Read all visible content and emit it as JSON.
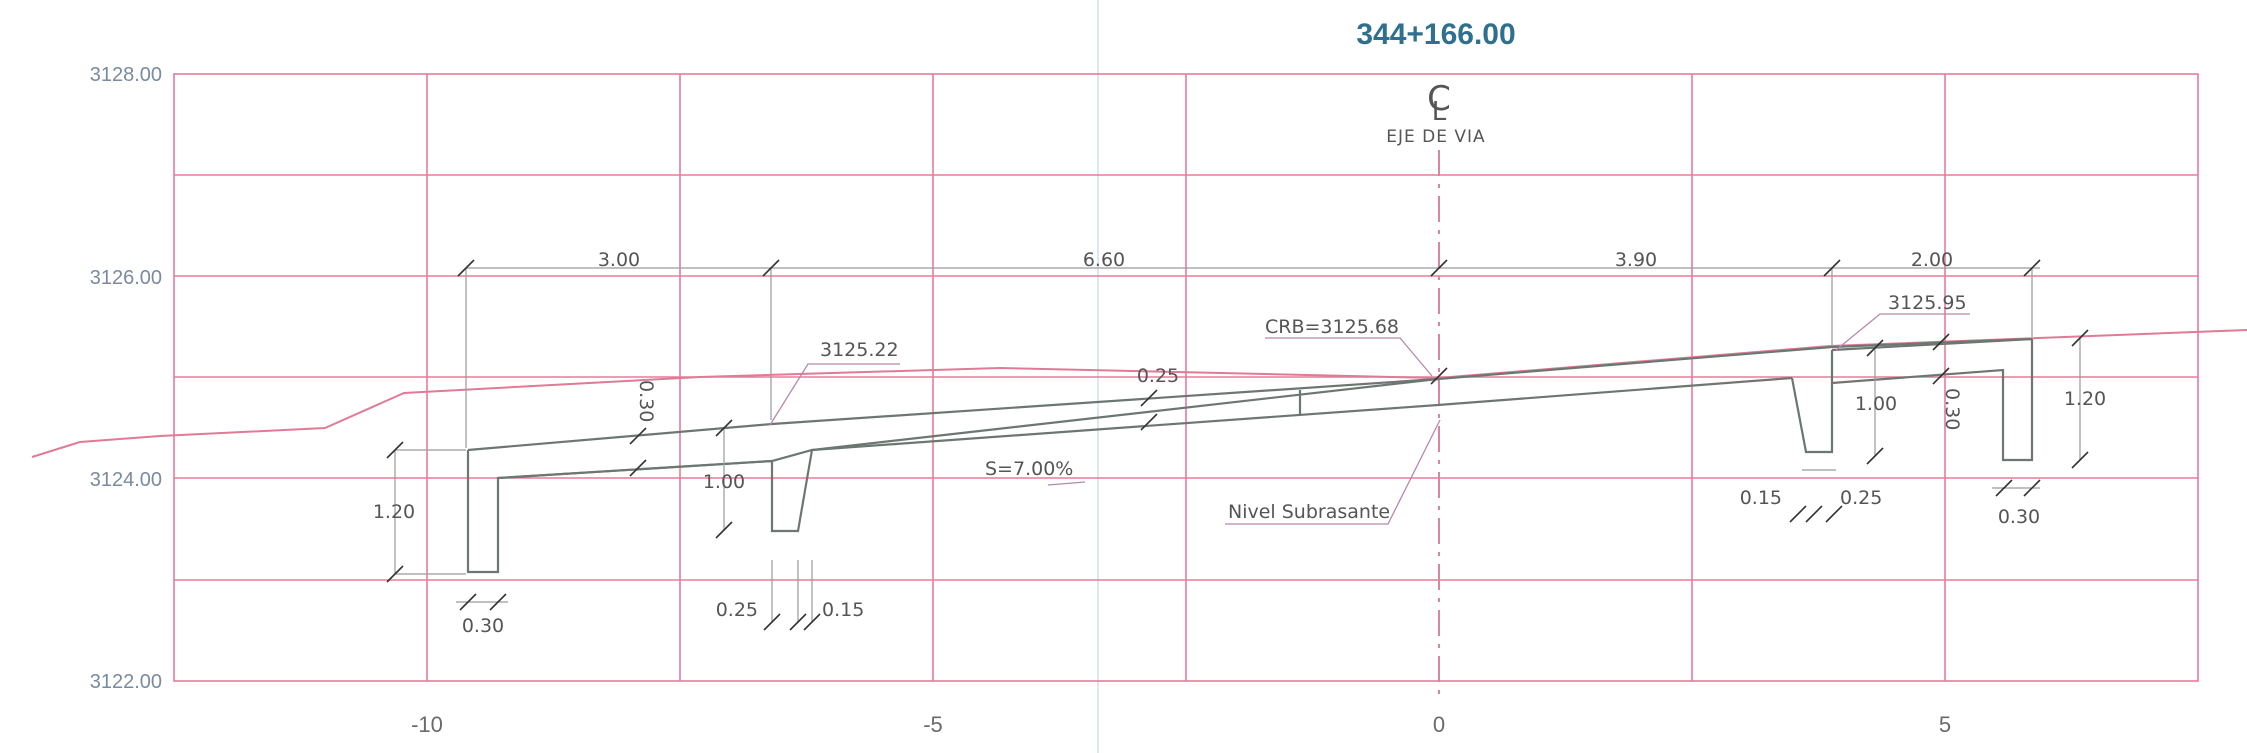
{
  "station_label": "344+166.00",
  "centerline": {
    "symbol": "C",
    "sub_symbol": "L",
    "label": "EJE DE VIA"
  },
  "y_ticks": [
    "3128.00",
    "3126.00",
    "3124.00",
    "3122.00"
  ],
  "x_ticks": [
    "-10",
    "-5",
    "0",
    "5"
  ],
  "top_dimensions": [
    "3.00",
    "6.60",
    "3.90",
    "2.00"
  ],
  "annotations": {
    "crb": "CRB=3125.68",
    "left_level": "3125.22",
    "right_level": "3125.95",
    "slope": "S=7.00%",
    "subgrade": "Nivel Subrasante",
    "pavement_thickness": "0.25"
  },
  "left_side": {
    "outer_wall_height": "1.20",
    "outer_wall_width": "0.30",
    "berm_thickness": "0.30",
    "ditch_depth": "1.00",
    "ditch_left_offset": "0.25",
    "ditch_right_offset": "0.15"
  },
  "right_side": {
    "ditch_depth": "1.00",
    "berm_thickness": "0.30",
    "outer_wall_height": "1.20",
    "ditch_left_offset": "0.15",
    "ditch_right_offset": "0.25",
    "outer_wall_width": "0.30"
  },
  "colors": {
    "grid": "#e77b9a",
    "station": "#2f6f8f",
    "structure": "#6d7772"
  }
}
